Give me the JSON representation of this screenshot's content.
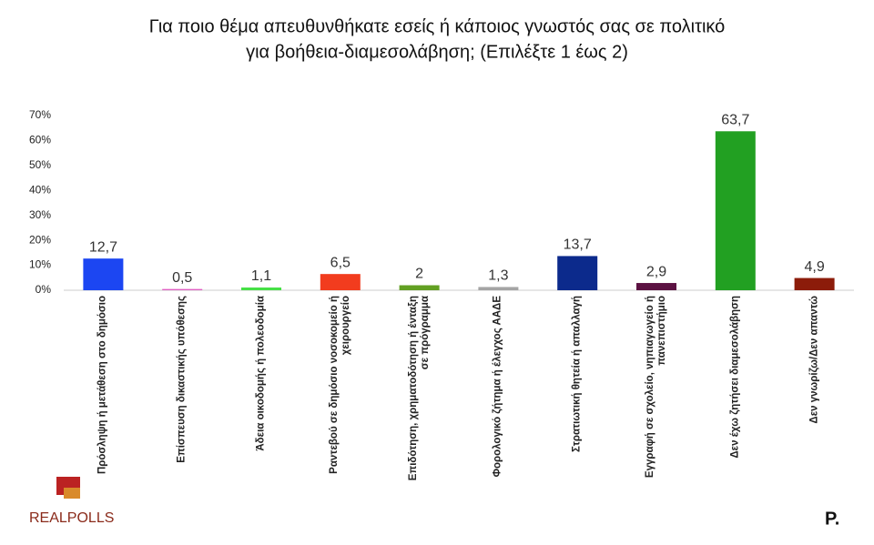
{
  "chart_data": {
    "type": "bar",
    "title": "Για ποιο θέμα απευθυνθήκατε εσείς ή κάποιος γνωστός σας σε πολιτικό",
    "subtitle": "για βοήθεια-διαμεσολάβηση; (Επιλέξτε 1 έως 2)",
    "categories": [
      "Πρόσληψη ή μετάθεση στο δημόσιο",
      "Επίσπευση δικαστικής υπόθεσης",
      "Άδεια οικοδομής ή πολεοδομία",
      "Ραντεβού σε δημόσιο νοσοκομείο ή χειρουργείο",
      "Επιδότηση, χρηματοδότηση ή ένταξη σε πρόγραμμα",
      "Φορολογικό ζήτημα ή έλεγχος ΑΑΔΕ",
      "Στρατιωτική θητεία ή απαλλαγή",
      "Εγγραφή σε σχολείο, νηπιαγωγείο ή πανεπιστήμιο",
      "Δεν έχω ζητήσει διαμεσολάβηση",
      "Δεν γνωρίζω/Δεν απαντώ"
    ],
    "values": [
      12.7,
      0.5,
      1.1,
      6.5,
      2,
      1.3,
      13.7,
      2.9,
      63.7,
      4.9
    ],
    "value_labels": [
      "12,7",
      "0,5",
      "1,1",
      "6,5",
      "2",
      "1,3",
      "13,7",
      "2,9",
      "63,7",
      "4,9"
    ],
    "colors": [
      "#1c46f2",
      "#e060c4",
      "#46e046",
      "#f23c1e",
      "#62a022",
      "#a4a4a4",
      "#0c2a8c",
      "#5c1242",
      "#22a022",
      "#8c1c0a"
    ],
    "ylim": [
      0,
      70
    ],
    "yticks": [
      {
        "value": 0,
        "label": "0%"
      },
      {
        "value": 10,
        "label": "10%"
      },
      {
        "value": 20,
        "label": "20%"
      },
      {
        "value": 30,
        "label": "30%"
      },
      {
        "value": 40,
        "label": "40%"
      },
      {
        "value": 50,
        "label": "50%"
      },
      {
        "value": 60,
        "label": "60%"
      },
      {
        "value": 70,
        "label": "70%"
      }
    ],
    "grid": false
  },
  "logos": {
    "left": "REALPOLLS",
    "right": "P."
  }
}
